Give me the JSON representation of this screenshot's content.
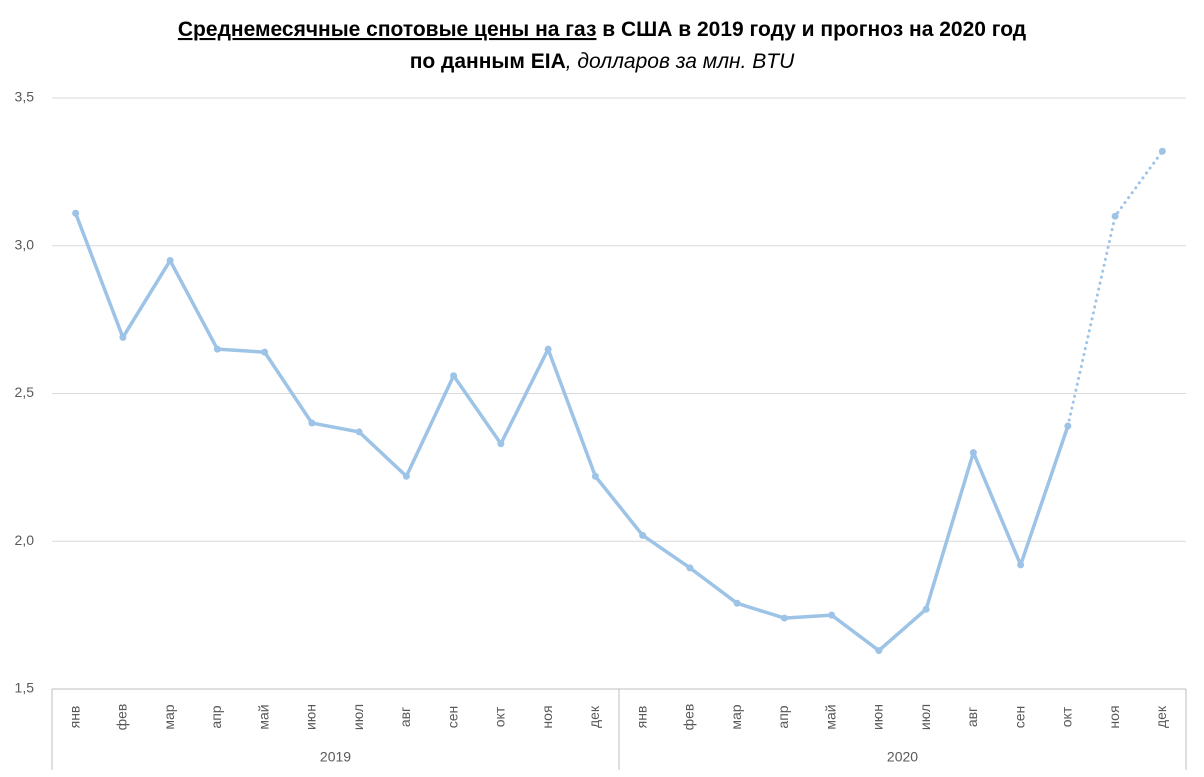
{
  "chart_data": {
    "type": "line",
    "title_lines": [
      [
        "Среднемесячные спотовые цены на газ",
        " в США в 2019 году и прогноз на 2020 год"
      ],
      [
        "по данным EIA",
        ", долларов за млн. BTU"
      ]
    ],
    "groups": [
      {
        "name": "2019",
        "categories": [
          "янв",
          "фев",
          "мар",
          "апр",
          "май",
          "июн",
          "июл",
          "авг",
          "сен",
          "окт",
          "ноя",
          "дек"
        ]
      },
      {
        "name": "2020",
        "categories": [
          "янв",
          "фев",
          "мар",
          "апр",
          "май",
          "июн",
          "июл",
          "авг",
          "сен",
          "окт",
          "ноя",
          "дек"
        ]
      }
    ],
    "values": [
      3.11,
      2.69,
      2.95,
      2.65,
      2.64,
      2.4,
      2.37,
      2.22,
      2.56,
      2.33,
      2.65,
      2.22,
      2.02,
      1.91,
      1.79,
      1.74,
      1.75,
      1.63,
      1.77,
      2.3,
      1.92,
      2.39,
      3.1,
      3.32
    ],
    "color": "#9dc3e6",
    "forecast_from": 21,
    "ylim": [
      1.5,
      3.5
    ],
    "yticks": [
      {
        "value": 1.5,
        "label": "1,5"
      },
      {
        "value": 2.0,
        "label": "2,0"
      },
      {
        "value": 2.5,
        "label": "2,5"
      },
      {
        "value": 3.0,
        "label": "3,0"
      },
      {
        "value": 3.5,
        "label": "3,5"
      }
    ],
    "grid": true
  }
}
